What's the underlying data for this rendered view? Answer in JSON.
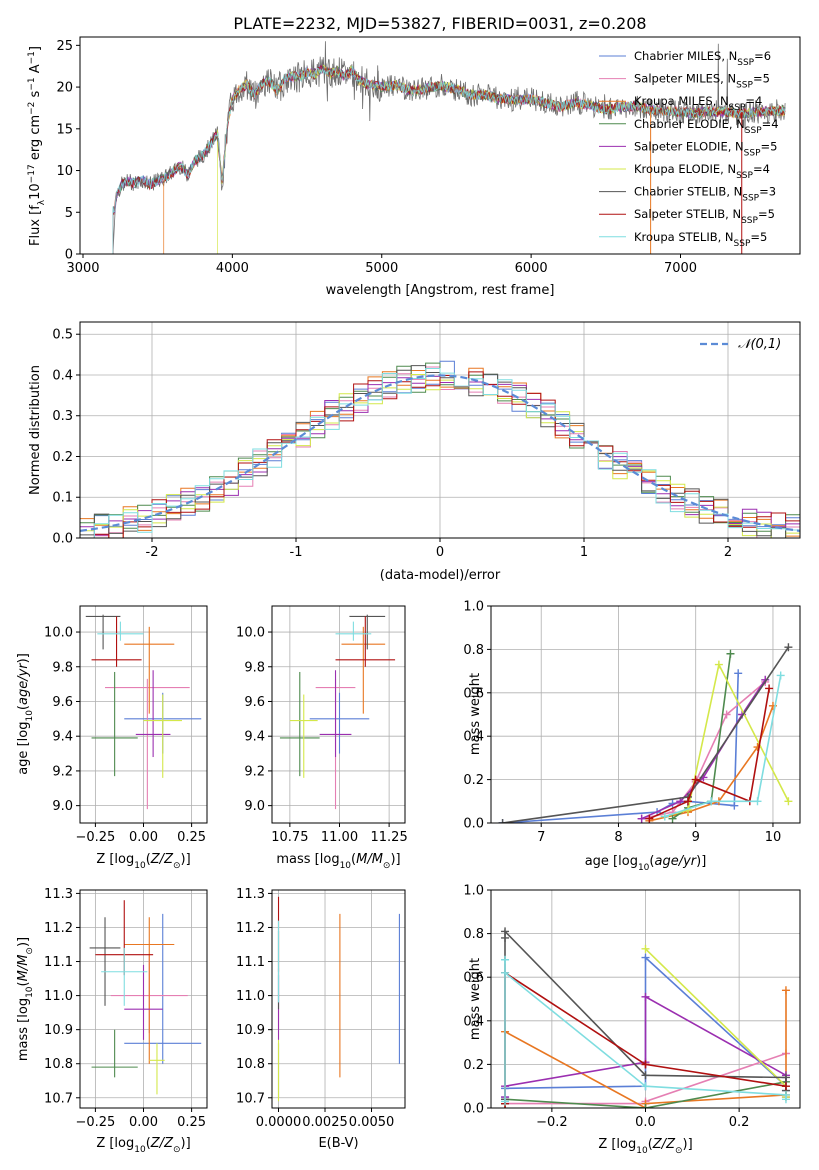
{
  "figure": {
    "title": "PLATE=2232, MJD=53827, FIBERID=0031, z=0.208"
  },
  "series": [
    {
      "name": "Chabrier MILES",
      "nssp": "6",
      "color": "#5b7fd6"
    },
    {
      "name": "Salpeter MILES",
      "nssp": "5",
      "color": "#e57fb3"
    },
    {
      "name": "Kroupa MILES",
      "nssp": "4",
      "color": "#e87722"
    },
    {
      "name": "Chabrier ELODIE",
      "nssp": "4",
      "color": "#4e8a4e"
    },
    {
      "name": "Salpeter ELODIE",
      "nssp": "5",
      "color": "#9b2fb0"
    },
    {
      "name": "Kroupa ELODIE",
      "nssp": "4",
      "color": "#d4e84a"
    },
    {
      "name": "Chabrier STELIB",
      "nssp": "3",
      "color": "#555555"
    },
    {
      "name": "Salpeter STELIB",
      "nssp": "5",
      "color": "#b01010"
    },
    {
      "name": "Kroupa STELIB",
      "nssp": "5",
      "color": "#7fdde0"
    }
  ],
  "chart_data": [
    {
      "id": "spectrum",
      "type": "line",
      "xlabel": "wavelength [Angstrom, rest frame]",
      "ylabel": "Flux [f_λ 10^-17 erg cm^-2 s^-1 A^-1]",
      "xlim": [
        2980,
        7800
      ],
      "ylim": [
        0,
        26
      ],
      "xticks": [
        3000,
        4000,
        5000,
        6000,
        7000
      ],
      "yticks": [
        0,
        5,
        10,
        15,
        20,
        25
      ],
      "legend": "top-right",
      "grid": false,
      "data_color": "#6e6e6e",
      "model_start_x": [
        3200,
        3200,
        3540,
        3200,
        3200,
        3900,
        3200,
        3200,
        3200
      ],
      "data": {
        "x": [
          3200,
          3220,
          3260,
          3300,
          3350,
          3400,
          3450,
          3500,
          3550,
          3600,
          3650,
          3700,
          3750,
          3800,
          3850,
          3900,
          3930,
          3970,
          4000,
          4050,
          4100,
          4150,
          4200,
          4250,
          4300,
          4350,
          4400,
          4450,
          4500,
          4550,
          4600,
          4650,
          4700,
          4750,
          4800,
          4850,
          4900,
          5000,
          5100,
          5200,
          5300,
          5400,
          5500,
          5600,
          5700,
          5800,
          5900,
          6000,
          6100,
          6200,
          6300,
          6400,
          6500,
          6600,
          6700,
          6800,
          6900,
          7000,
          7100,
          7200,
          7300,
          7400,
          7500,
          7600,
          7700
        ],
        "y": [
          0,
          7.0,
          8.3,
          8.7,
          8.5,
          8.9,
          8.3,
          8.8,
          9.2,
          9.8,
          10.6,
          9.5,
          11.2,
          11.8,
          13.0,
          14.5,
          8.5,
          16.0,
          18.5,
          19.8,
          20.3,
          19.0,
          20.5,
          20.6,
          19.5,
          21.0,
          21.3,
          21.2,
          21.8,
          21.5,
          22.2,
          21.6,
          22.0,
          21.3,
          22.0,
          20.8,
          20.4,
          20.0,
          20.2,
          19.5,
          19.9,
          20.2,
          19.7,
          19.1,
          19.0,
          18.6,
          18.4,
          18.6,
          18.1,
          17.6,
          18.2,
          17.8,
          17.3,
          17.6,
          17.7,
          17.3,
          17.1,
          17.0,
          16.9,
          17.1,
          17.0,
          16.8,
          17.0,
          17.1,
          17.2
        ]
      }
    },
    {
      "id": "residuals",
      "type": "histogram",
      "xlabel": "(data-model)/error",
      "ylabel": "Normed distribution",
      "xlim": [
        -2.5,
        2.5
      ],
      "ylim": [
        0,
        0.53
      ],
      "xticks": [
        -2,
        -1,
        0,
        1,
        2
      ],
      "yticks": [
        0.0,
        0.1,
        0.2,
        0.3,
        0.4,
        0.5
      ],
      "grid": true,
      "legend": "top-right",
      "reference_label": "𝒩(0,1)",
      "reference_color": "#5b8bd6",
      "bin_width": 0.1
    },
    {
      "id": "age_vs_Z",
      "type": "errorbar",
      "xlabel": "Z [log10(Z/Z⊙)]",
      "ylabel": "age  [log10(age/yr)]",
      "xlim": [
        -0.33,
        0.33
      ],
      "ylim": [
        8.9,
        10.15
      ],
      "xticks": [
        -0.25,
        0.0,
        0.25
      ],
      "xtick_labels": [
        "−0.25",
        "0.00",
        "0.25"
      ],
      "yticks": [
        9.0,
        9.2,
        9.4,
        9.6,
        9.8,
        10.0
      ],
      "grid": true,
      "points": [
        {
          "x": 0.1,
          "xerr": 0.2,
          "y": 9.5,
          "yerr_lo": 0.2,
          "yerr_hi": 0.15
        },
        {
          "x": 0.02,
          "xerr": 0.22,
          "y": 9.68,
          "yerr_lo": 0.7,
          "yerr_hi": 0.05
        },
        {
          "x": 0.03,
          "xerr": 0.13,
          "y": 9.93,
          "yerr_lo": 0.4,
          "yerr_hi": 0.1
        },
        {
          "x": -0.15,
          "xerr": 0.12,
          "y": 9.39,
          "yerr_lo": 0.22,
          "yerr_hi": 0.38
        },
        {
          "x": 0.05,
          "xerr": 0.09,
          "y": 9.41,
          "yerr_lo": 0.13,
          "yerr_hi": 0.37
        },
        {
          "x": 0.1,
          "xerr": 0.1,
          "y": 9.49,
          "yerr_lo": 0.33,
          "yerr_hi": 0.15
        },
        {
          "x": -0.21,
          "xerr": 0.09,
          "y": 10.09,
          "yerr_lo": 0.19,
          "yerr_hi": 0.01
        },
        {
          "x": -0.14,
          "xerr": 0.13,
          "y": 9.84,
          "yerr_lo": 0.04,
          "yerr_hi": 0.25
        },
        {
          "x": -0.12,
          "xerr": 0.12,
          "y": 9.99,
          "yerr_lo": 0.04,
          "yerr_hi": 0.07
        }
      ]
    },
    {
      "id": "age_vs_mass",
      "type": "errorbar",
      "xlabel": "mass [log10(M/M⊙)]",
      "ylabel": "",
      "xlim": [
        10.66,
        11.33
      ],
      "ylim": [
        8.9,
        10.15
      ],
      "xticks": [
        10.75,
        11.0,
        11.25
      ],
      "xtick_labels": [
        "10.75",
        "11.00",
        "11.25"
      ],
      "yticks": [
        9.0,
        9.2,
        9.4,
        9.6,
        9.8,
        10.0
      ],
      "grid": true,
      "points": [
        {
          "x": 11.0,
          "xerr": 0.15,
          "y": 9.5,
          "yerr_lo": 0.2,
          "yerr_hi": 0.15
        },
        {
          "x": 10.98,
          "xerr": 0.1,
          "y": 9.68,
          "yerr_lo": 0.7,
          "yerr_hi": 0.05
        },
        {
          "x": 11.12,
          "xerr": 0.11,
          "y": 9.93,
          "yerr_lo": 0.4,
          "yerr_hi": 0.1
        },
        {
          "x": 10.8,
          "xerr": 0.1,
          "y": 9.39,
          "yerr_lo": 0.22,
          "yerr_hi": 0.38
        },
        {
          "x": 10.98,
          "xerr": 0.08,
          "y": 9.41,
          "yerr_lo": 0.13,
          "yerr_hi": 0.37
        },
        {
          "x": 10.82,
          "xerr": 0.07,
          "y": 9.49,
          "yerr_lo": 0.33,
          "yerr_hi": 0.15
        },
        {
          "x": 11.14,
          "xerr": 0.09,
          "y": 10.09,
          "yerr_lo": 0.19,
          "yerr_hi": 0.01
        },
        {
          "x": 11.13,
          "xerr": 0.15,
          "y": 9.84,
          "yerr_lo": 0.04,
          "yerr_hi": 0.25
        },
        {
          "x": 11.07,
          "xerr": 0.09,
          "y": 9.99,
          "yerr_lo": 0.04,
          "yerr_hi": 0.07
        }
      ]
    },
    {
      "id": "weight_vs_age",
      "type": "line",
      "xlabel": "age  [log10(age/yr)]",
      "ylabel": "mass weight",
      "xlim": [
        6.35,
        10.35
      ],
      "ylim": [
        0,
        1.0
      ],
      "xticks": [
        7,
        8,
        9,
        10
      ],
      "yticks": [
        0.0,
        0.2,
        0.4,
        0.6,
        0.8,
        1.0
      ],
      "grid": true,
      "series": [
        {
          "x": [
            6.5,
            8.5,
            8.7,
            8.9,
            9.5,
            9.55
          ],
          "y": [
            0.0,
            0.05,
            0.09,
            0.1,
            0.08,
            0.69
          ]
        },
        {
          "x": [
            8.3,
            8.7,
            9.0,
            9.4,
            9.9
          ],
          "y": [
            0.02,
            0.05,
            0.19,
            0.5,
            0.65
          ]
        },
        {
          "x": [
            8.4,
            8.9,
            9.3,
            9.8,
            10.0
          ],
          "y": [
            0.01,
            0.05,
            0.1,
            0.35,
            0.54
          ]
        },
        {
          "x": [
            8.7,
            8.9,
            9.2,
            9.45
          ],
          "y": [
            0.02,
            0.07,
            0.1,
            0.78
          ]
        },
        {
          "x": [
            8.3,
            8.8,
            9.1,
            9.6,
            9.9
          ],
          "y": [
            0.02,
            0.1,
            0.21,
            0.5,
            0.66
          ]
        },
        {
          "x": [
            8.6,
            8.9,
            9.3,
            10.2
          ],
          "y": [
            0.03,
            0.06,
            0.73,
            0.1
          ]
        },
        {
          "x": [
            6.5,
            8.9,
            10.2
          ],
          "y": [
            0.0,
            0.12,
            0.81
          ]
        },
        {
          "x": [
            8.4,
            8.9,
            9.0,
            9.7,
            9.95
          ],
          "y": [
            0.02,
            0.1,
            0.2,
            0.1,
            0.62
          ]
        },
        {
          "x": [
            8.6,
            9.2,
            9.8,
            10.1
          ],
          "y": [
            0.03,
            0.1,
            0.1,
            0.68
          ]
        }
      ]
    },
    {
      "id": "mass_vs_Z",
      "type": "errorbar",
      "xlabel": "Z [log10(Z/Z⊙)]",
      "ylabel": "mass [log10(M/M⊙)]",
      "xlim": [
        -0.33,
        0.33
      ],
      "ylim": [
        10.67,
        11.31
      ],
      "xticks": [
        -0.25,
        0.0,
        0.25
      ],
      "xtick_labels": [
        "−0.25",
        "0.00",
        "0.25"
      ],
      "yticks": [
        10.7,
        10.8,
        10.9,
        11.0,
        11.1,
        11.2,
        11.3
      ],
      "grid": true,
      "points": [
        {
          "x": 0.1,
          "xerr": 0.2,
          "y": 10.86,
          "yerr_lo": 0.06,
          "yerr_hi": 0.38
        },
        {
          "x": 0.03,
          "xerr": 0.2,
          "y": 11.0,
          "yerr_lo": 0.11,
          "yerr_hi": 0.12
        },
        {
          "x": 0.03,
          "xerr": 0.13,
          "y": 11.15,
          "yerr_lo": 0.35,
          "yerr_hi": 0.08
        },
        {
          "x": -0.15,
          "xerr": 0.12,
          "y": 10.79,
          "yerr_lo": 0.03,
          "yerr_hi": 0.11
        },
        {
          "x": 0.0,
          "xerr": 0.1,
          "y": 10.96,
          "yerr_lo": 0.09,
          "yerr_hi": 0.13
        },
        {
          "x": 0.07,
          "xerr": 0.04,
          "y": 10.81,
          "yerr_lo": 0.1,
          "yerr_hi": 0.05
        },
        {
          "x": -0.2,
          "xerr": 0.08,
          "y": 11.14,
          "yerr_lo": 0.17,
          "yerr_hi": 0.09
        },
        {
          "x": -0.1,
          "xerr": 0.15,
          "y": 11.12,
          "yerr_lo": 0.06,
          "yerr_hi": 0.16
        },
        {
          "x": -0.1,
          "xerr": 0.12,
          "y": 11.07,
          "yerr_lo": 0.1,
          "yerr_hi": 0.07
        }
      ]
    },
    {
      "id": "mass_vs_ebv",
      "type": "errorbar",
      "xlabel": "E(B-V)",
      "ylabel": "",
      "xlim": [
        -0.00035,
        0.0068
      ],
      "ylim": [
        10.67,
        11.31
      ],
      "xticks": [
        0.0,
        0.0025,
        0.005
      ],
      "xtick_labels": [
        "0.0000",
        "0.0025",
        "0.0050"
      ],
      "yticks": [
        10.7,
        10.8,
        10.9,
        11.0,
        11.1,
        11.2,
        11.3
      ],
      "grid": true,
      "points": [
        {
          "x": 0.0065,
          "xerr": 0,
          "y": 11.02,
          "yerr_lo": 0.22,
          "yerr_hi": 0.22
        },
        {
          "x": 0.0,
          "xerr": 0,
          "y": 11.0,
          "yerr_lo": 0.1,
          "yerr_hi": 0.08
        },
        {
          "x": 0.0033,
          "xerr": 0,
          "y": 11.0,
          "yerr_lo": 0.24,
          "yerr_hi": 0.24
        },
        {
          "x": 0.0,
          "xerr": 0,
          "y": 10.8,
          "yerr_lo": 0.1,
          "yerr_hi": 0.06
        },
        {
          "x": 0.0,
          "xerr": 0,
          "y": 10.96,
          "yerr_lo": 0.09,
          "yerr_hi": 0.1
        },
        {
          "x": 0.0,
          "xerr": 0,
          "y": 10.78,
          "yerr_lo": 0.09,
          "yerr_hi": 0.09
        },
        {
          "x": 0.0,
          "xerr": 0,
          "y": 11.14,
          "yerr_lo": 0.18,
          "yerr_hi": 0.05
        },
        {
          "x": 0.0,
          "xerr": 0,
          "y": 11.15,
          "yerr_lo": 0.08,
          "yerr_hi": 0.14
        },
        {
          "x": 0.0,
          "xerr": 0,
          "y": 11.1,
          "yerr_lo": 0.12,
          "yerr_hi": 0.12
        }
      ]
    },
    {
      "id": "weight_vs_Z",
      "type": "line",
      "xlabel": "Z [log10(Z/Z⊙)]",
      "ylabel": "mass weight",
      "xlim": [
        -0.33,
        0.33
      ],
      "ylim": [
        0,
        1.0
      ],
      "xticks": [
        -0.2,
        0.0,
        0.2
      ],
      "xtick_labels": [
        "−0.2",
        "0.0",
        "0.2"
      ],
      "yticks": [
        0.0,
        0.2,
        0.4,
        0.6,
        0.8,
        1.0
      ],
      "grid": true,
      "series": [
        {
          "x": [
            -0.3,
            -0.3,
            0.0,
            0.0,
            0.0,
            0.3,
            0.3
          ],
          "y": [
            0.05,
            0.09,
            0.1,
            0.15,
            0.69,
            0.1,
            0.08
          ]
        },
        {
          "x": [
            -0.3,
            0.0,
            0.0,
            0.3
          ],
          "y": [
            0.02,
            0.02,
            0.03,
            0.25
          ]
        },
        {
          "x": [
            -0.3,
            -0.3,
            0.0,
            0.0,
            0.3,
            0.3
          ],
          "y": [
            0.02,
            0.35,
            0.0,
            0.02,
            0.06,
            0.54
          ]
        },
        {
          "x": [
            -0.3,
            -0.3,
            0.0,
            0.3
          ],
          "y": [
            0.02,
            0.04,
            0.0,
            0.12
          ]
        },
        {
          "x": [
            -0.3,
            -0.3,
            0.0,
            0.0,
            0.3,
            0.3
          ],
          "y": [
            0.05,
            0.1,
            0.21,
            0.51,
            0.15,
            0.05
          ]
        },
        {
          "x": [
            0.0,
            0.3,
            0.3
          ],
          "y": [
            0.73,
            0.1,
            0.05
          ]
        },
        {
          "x": [
            -0.3,
            -0.3,
            -0.3,
            0.0,
            0.3,
            0.3
          ],
          "y": [
            0.04,
            0.78,
            0.81,
            0.15,
            0.14,
            0.08
          ]
        },
        {
          "x": [
            -0.3,
            -0.3,
            0.0,
            0.0,
            0.3
          ],
          "y": [
            0.02,
            0.62,
            0.2,
            0.2,
            0.1
          ]
        },
        {
          "x": [
            -0.3,
            -0.3,
            -0.3,
            0.0,
            0.3,
            0.3
          ],
          "y": [
            0.03,
            0.68,
            0.62,
            0.1,
            0.06,
            0.04
          ]
        }
      ]
    }
  ]
}
